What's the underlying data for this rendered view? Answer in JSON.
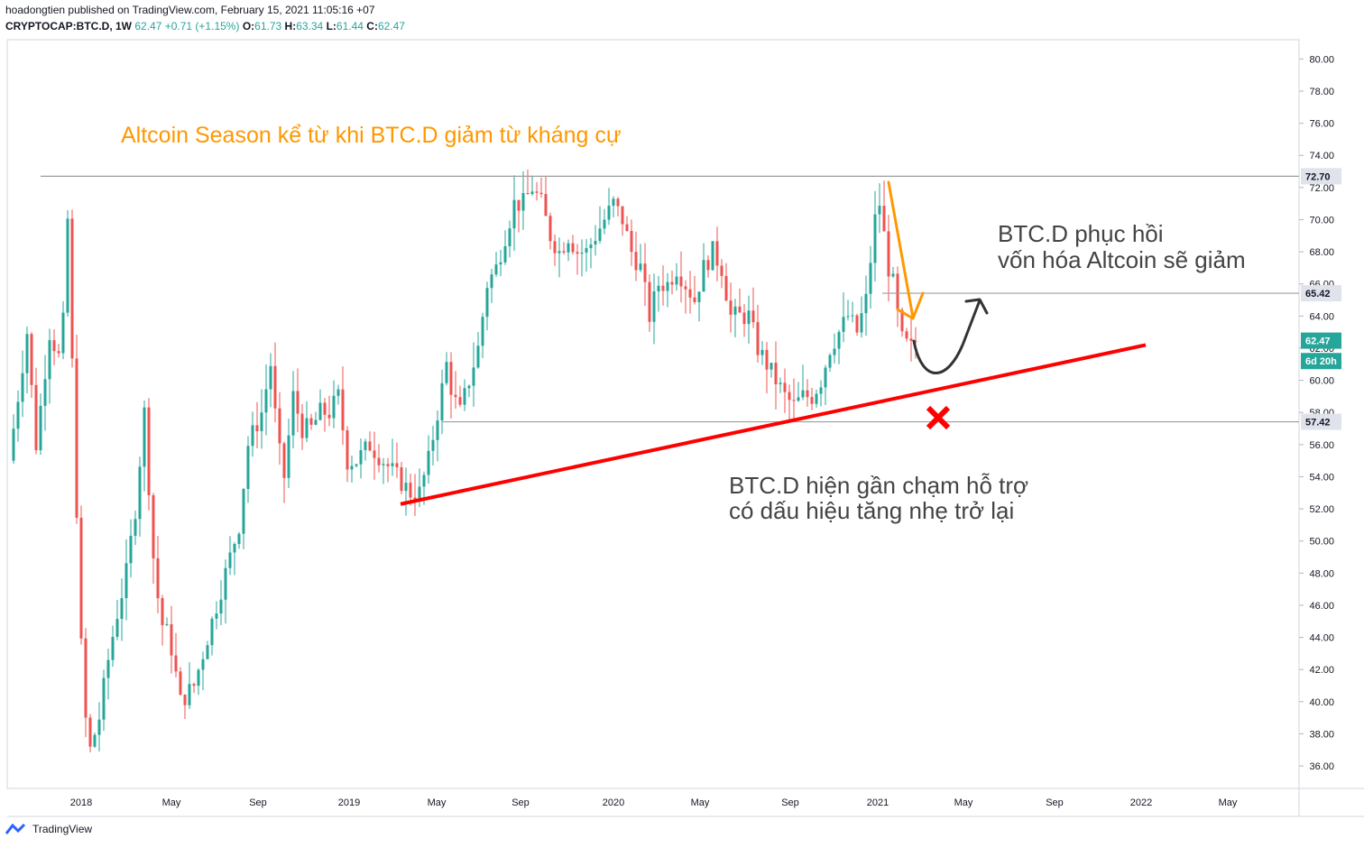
{
  "header": {
    "publish_line": "hoadongtien published on TradingView.com, February 15, 2021 11:05:16 +07",
    "symbol": "CRYPTOCAP:BTC.D, 1W",
    "last": "62.47",
    "change": "+0.71 (+1.15%)",
    "o_label": "O:",
    "o_value": "61.73",
    "h_label": "H:",
    "h_value": "63.34",
    "l_label": "L:",
    "l_value": "61.44",
    "c_label": "C:",
    "c_value": "62.47"
  },
  "footer": {
    "brand": "TradingView"
  },
  "colors": {
    "up": "#26a69a",
    "down": "#ef5350",
    "trendline": "#ff0000",
    "orange": "#ff9800",
    "dark": "#333333",
    "level": "#9e9e9e"
  },
  "chart_data": {
    "type": "candlestick",
    "y_axis": {
      "min": 34.6,
      "max": 81.2,
      "ticks": [
        36,
        38,
        40,
        42,
        44,
        46,
        48,
        50,
        52,
        54,
        56,
        58,
        60,
        62,
        64,
        66,
        68,
        70,
        72,
        74,
        76,
        78,
        80
      ]
    },
    "x_axis": {
      "ticks": [
        "2018",
        "May",
        "Sep",
        "2019",
        "May",
        "Sep",
        "2020",
        "May",
        "Sep",
        "2021",
        "May",
        "Sep",
        "2022",
        "May"
      ]
    },
    "price_labels": [
      {
        "text": "72.70",
        "value": 72.7,
        "style": "level"
      },
      {
        "text": "65.42",
        "value": 65.42,
        "style": "level"
      },
      {
        "text": "62.47",
        "value": 62.47,
        "style": "last"
      },
      {
        "text": "6d 20h",
        "value": 61.2,
        "style": "timer"
      },
      {
        "text": "57.42",
        "value": 57.42,
        "style": "level"
      }
    ],
    "horizontal_levels": [
      {
        "value": 72.7,
        "from": "2017-10",
        "to": "end"
      },
      {
        "value": 65.42,
        "from": "2021-01",
        "to": "end"
      },
      {
        "value": 57.42,
        "from": "2019-04",
        "to": "end"
      }
    ],
    "trendline": {
      "from": {
        "date": "2019-03",
        "value": 52.3
      },
      "to": {
        "date": "2021-11",
        "value": 62.2
      }
    },
    "annotations": [
      {
        "text": "Altcoin Season kể từ khi BTC.D giảm từ kháng cự",
        "color": "#ff9800"
      },
      {
        "text": "BTC.D phục hồi",
        "color": "#444444"
      },
      {
        "text": "vốn hóa Altcoin sẽ giảm",
        "color": "#444444"
      },
      {
        "text": "BTC.D hiện gần chạm hỗ trợ",
        "color": "#444444"
      },
      {
        "text": "có dấu hiệu tăng nhẹ trở lại",
        "color": "#444444"
      }
    ],
    "markers": [
      {
        "type": "x-mark",
        "color": "#ff0000",
        "date": "2021-04",
        "value": 57.4
      }
    ],
    "anchors": [
      [
        0,
        55
      ],
      [
        20,
        63
      ],
      [
        30,
        56
      ],
      [
        45,
        63
      ],
      [
        58,
        61
      ],
      [
        65,
        70
      ],
      [
        75,
        52
      ],
      [
        82,
        40
      ],
      [
        90,
        37
      ],
      [
        100,
        39
      ],
      [
        108,
        42
      ],
      [
        118,
        45
      ],
      [
        130,
        48
      ],
      [
        140,
        52
      ],
      [
        150,
        58
      ],
      [
        160,
        49
      ],
      [
        168,
        45
      ],
      [
        178,
        44
      ],
      [
        190,
        40
      ],
      [
        205,
        41
      ],
      [
        215,
        43
      ],
      [
        225,
        45
      ],
      [
        240,
        48
      ],
      [
        255,
        51
      ],
      [
        265,
        56
      ],
      [
        280,
        58
      ],
      [
        290,
        61
      ],
      [
        298,
        56
      ],
      [
        305,
        54
      ],
      [
        315,
        59
      ],
      [
        325,
        57
      ],
      [
        335,
        57
      ],
      [
        345,
        58
      ],
      [
        355,
        58
      ],
      [
        365,
        59
      ],
      [
        375,
        55
      ],
      [
        385,
        55
      ],
      [
        400,
        56
      ],
      [
        415,
        55
      ],
      [
        430,
        54
      ],
      [
        445,
        53
      ],
      [
        455,
        53
      ],
      [
        465,
        55
      ],
      [
        475,
        58
      ],
      [
        485,
        61
      ],
      [
        492,
        59
      ],
      [
        500,
        58
      ],
      [
        510,
        60
      ],
      [
        520,
        62
      ],
      [
        530,
        66
      ],
      [
        540,
        67
      ],
      [
        550,
        69
      ],
      [
        560,
        71
      ],
      [
        570,
        71
      ],
      [
        580,
        72
      ],
      [
        590,
        71
      ],
      [
        600,
        69
      ],
      [
        610,
        68
      ],
      [
        620,
        69
      ],
      [
        630,
        68
      ],
      [
        640,
        68
      ],
      [
        650,
        69
      ],
      [
        660,
        70
      ],
      [
        670,
        71
      ],
      [
        680,
        70
      ],
      [
        690,
        68
      ],
      [
        700,
        67
      ],
      [
        710,
        64
      ],
      [
        720,
        66
      ],
      [
        730,
        66
      ],
      [
        740,
        67
      ],
      [
        750,
        66
      ],
      [
        760,
        65
      ],
      [
        770,
        67
      ],
      [
        780,
        68
      ],
      [
        790,
        67
      ],
      [
        800,
        64
      ],
      [
        810,
        64
      ],
      [
        820,
        64
      ],
      [
        830,
        62
      ],
      [
        840,
        61
      ],
      [
        850,
        60
      ],
      [
        860,
        59
      ],
      [
        870,
        58.4
      ],
      [
        880,
        59
      ],
      [
        890,
        59
      ],
      [
        900,
        60
      ],
      [
        910,
        62
      ],
      [
        920,
        63
      ],
      [
        930,
        64
      ],
      [
        940,
        63
      ],
      [
        950,
        65
      ],
      [
        960,
        70
      ],
      [
        965,
        71
      ],
      [
        970,
        69
      ],
      [
        975,
        67
      ],
      [
        980,
        66
      ],
      [
        985,
        64
      ],
      [
        990,
        62.5
      ],
      [
        995,
        62.2
      ],
      [
        1000,
        62
      ],
      [
        1005,
        62.47
      ]
    ]
  }
}
